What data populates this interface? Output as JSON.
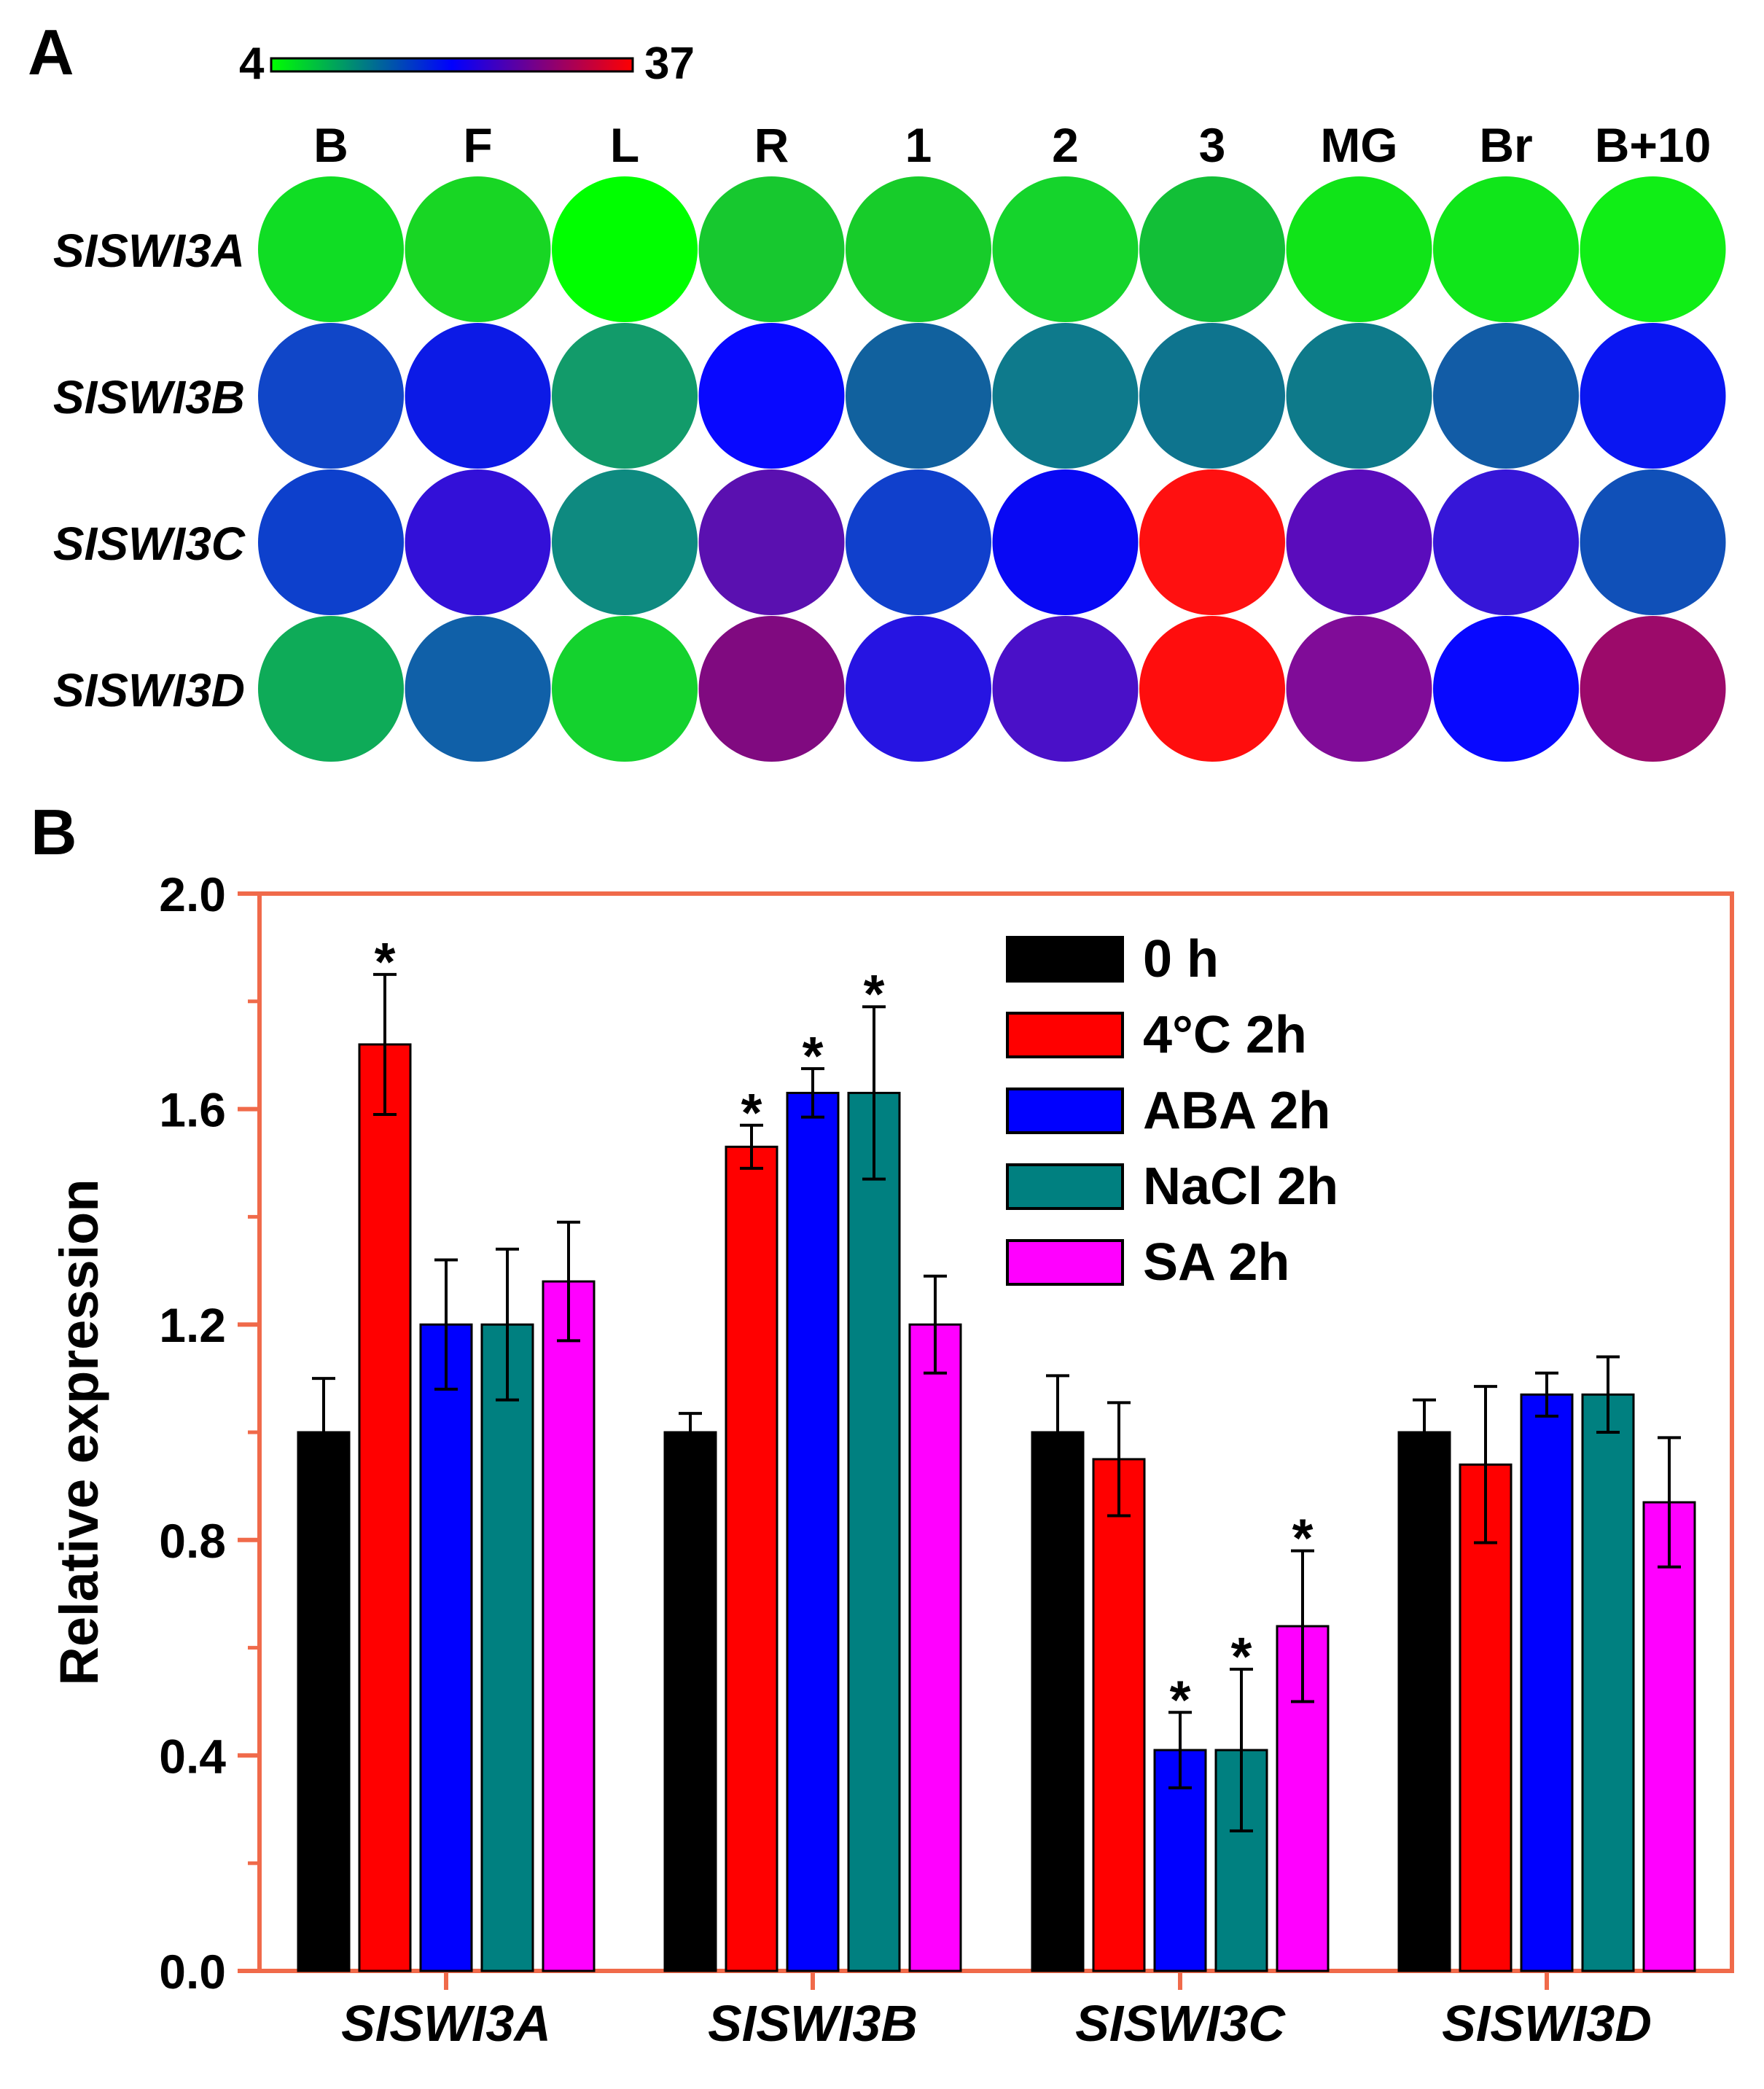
{
  "panels": {
    "a": {
      "label": "A"
    },
    "b": {
      "label": "B"
    }
  },
  "colors": {
    "frame": "#f06a4a",
    "black": "#000000",
    "scale_low": "#00ff00",
    "scale_mid": "#0000ff",
    "scale_high": "#ff0000"
  },
  "chart_data": [
    {
      "type": "heatmap",
      "title": "",
      "scale_min_label": "4",
      "scale_max_label": "37",
      "value_range": [
        4,
        37
      ],
      "columns": [
        "B",
        "F",
        "L",
        "R",
        "1",
        "2",
        "3",
        "MG",
        "Br",
        "B+10"
      ],
      "rows": [
        "SlSWI3A",
        "SlSWI3B",
        "SlSWI3C",
        "SlSWI3D"
      ],
      "cell_colors": [
        [
          "#10dd24",
          "#18d624",
          "#00ff00",
          "#17c82f",
          "#17cc2a",
          "#15d42c",
          "#12bf37",
          "#10e418",
          "#10e61a",
          "#10ee16"
        ],
        [
          "#1046c8",
          "#0c1ae6",
          "#129b6a",
          "#0808ff",
          "#11619e",
          "#0e7a8c",
          "#0e748e",
          "#0e7a8a",
          "#125ca6",
          "#0a16f2"
        ],
        [
          "#0d40cc",
          "#3310d8",
          "#0e8a80",
          "#5a10b0",
          "#1040cc",
          "#0808f4",
          "#ff1010",
          "#5a0cbc",
          "#3616d8",
          "#1050b8"
        ],
        [
          "#0eab58",
          "#1060a8",
          "#14d22e",
          "#800a80",
          "#2614e2",
          "#4a10c8",
          "#ff0d0d",
          "#800c98",
          "#0808ff",
          "#9c0a6a"
        ]
      ]
    },
    {
      "type": "bar",
      "title": "",
      "xlabel": "",
      "ylabel": "Relative expression",
      "ylim": [
        0.0,
        2.0
      ],
      "yticks": [
        "0.0",
        "0.4",
        "0.8",
        "1.2",
        "1.6",
        "2.0"
      ],
      "grid": false,
      "legend_position": "top-right",
      "categories": [
        "SlSWI3A",
        "SlSWI3B",
        "SlSWI3C",
        "SlSWI3D"
      ],
      "series": [
        {
          "name": "0 h",
          "color": "#000000",
          "values": [
            1.0,
            1.0,
            1.0,
            1.0
          ],
          "errors": [
            0.1,
            0.035,
            0.105,
            0.06
          ],
          "significant": [
            false,
            false,
            false,
            false
          ]
        },
        {
          "name": "4°C 2h",
          "color": "#ff0000",
          "values": [
            1.72,
            1.53,
            0.95,
            0.94
          ],
          "errors": [
            0.13,
            0.04,
            0.105,
            0.145
          ],
          "significant": [
            true,
            true,
            false,
            false
          ]
        },
        {
          "name": "ABA 2h",
          "color": "#0000ff",
          "values": [
            1.2,
            1.63,
            0.41,
            1.07
          ],
          "errors": [
            0.12,
            0.045,
            0.07,
            0.04
          ],
          "significant": [
            false,
            true,
            true,
            false
          ]
        },
        {
          "name": "NaCl 2h",
          "color": "#008080",
          "values": [
            1.2,
            1.63,
            0.41,
            1.07
          ],
          "errors": [
            0.14,
            0.16,
            0.15,
            0.07
          ],
          "significant": [
            false,
            true,
            true,
            false
          ]
        },
        {
          "name": "SA 2h",
          "color": "#ff00ff",
          "values": [
            1.28,
            1.2,
            0.64,
            0.87
          ],
          "errors": [
            0.11,
            0.09,
            0.14,
            0.12
          ],
          "significant": [
            false,
            false,
            true,
            false
          ]
        }
      ],
      "significance_marker": "*"
    }
  ]
}
